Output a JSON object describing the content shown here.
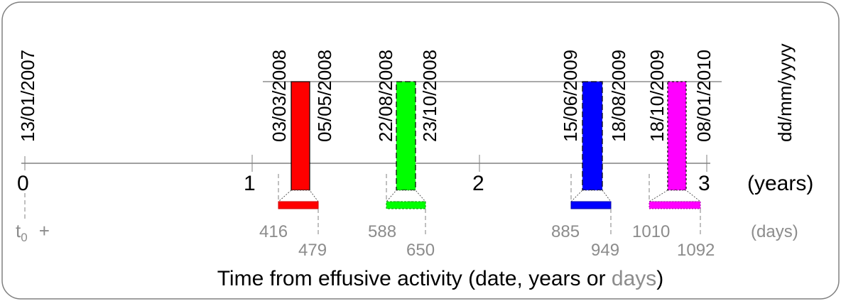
{
  "start_date": "13/01/2007",
  "date_format": "dd/mm/yyyy",
  "years_unit": "(years)",
  "days_unit": "(days)",
  "t0_base": "t",
  "t0_sub": "0",
  "t0_plus": "+",
  "caption_main": "Time from effusive activity (date, years or ",
  "caption_gray": "days",
  "caption_end": ")",
  "year_ticks": [
    "0",
    "1",
    "2",
    "3"
  ],
  "colors": {
    "axis": "#808080",
    "days_text": "#8c8c8c",
    "frame": "#808080"
  },
  "eruptions": [
    {
      "start_date": "03/03/2008",
      "end_date": "05/05/2008",
      "start_day": "416",
      "end_day": "479",
      "color": "#ff0000",
      "style": "solid"
    },
    {
      "start_date": "22/08/2008",
      "end_date": "23/10/2008",
      "start_day": "588",
      "end_day": "650",
      "color": "#00ff00",
      "style": "dashed"
    },
    {
      "start_date": "15/06/2009",
      "end_date": "18/08/2009",
      "start_day": "885",
      "end_day": "949",
      "color": "#0000ff",
      "style": "dashed"
    },
    {
      "start_date": "18/10/2009",
      "end_date": "08/01/2010",
      "start_day": "1010",
      "end_day": "1092",
      "color": "#ff00ff",
      "style": "dotted"
    }
  ]
}
